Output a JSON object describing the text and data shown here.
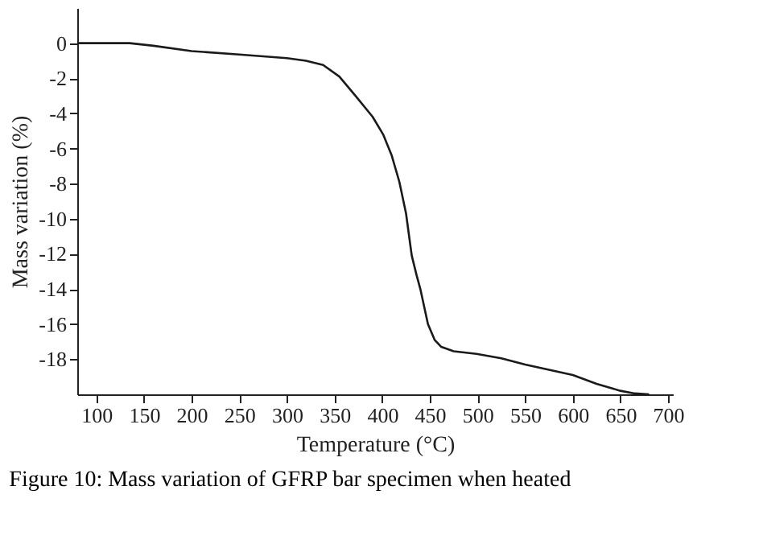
{
  "chart_data": {
    "type": "line",
    "xlabel": "Temperature (°C)",
    "ylabel": "Mass variation (%)",
    "x": [
      80,
      110,
      135,
      160,
      200,
      250,
      300,
      320,
      338,
      355,
      372,
      390,
      401,
      410,
      418,
      425,
      431,
      436,
      440,
      448,
      455,
      462,
      475,
      499,
      525,
      550,
      575,
      600,
      625,
      650,
      665,
      680
    ],
    "series": [
      {
        "color": "#1a1a1a",
        "values": [
          0,
          0,
          0,
          -0.15,
          -0.45,
          -0.65,
          -0.85,
          -1.0,
          -1.24,
          -1.9,
          -3.0,
          -4.2,
          -5.2,
          -6.4,
          -7.9,
          -9.7,
          -12.1,
          -13.2,
          -14.0,
          -16.0,
          -16.9,
          -17.3,
          -17.55,
          -17.7,
          -17.95,
          -18.3,
          -18.6,
          -18.9,
          -19.4,
          -19.8,
          -19.95,
          -20
        ]
      }
    ],
    "xlim": [
      80,
      705
    ],
    "ylim": [
      -20,
      2
    ],
    "xticks": [
      100,
      150,
      200,
      250,
      300,
      350,
      400,
      450,
      500,
      550,
      600,
      650,
      700
    ],
    "yticks": [
      0,
      -2,
      -4,
      -6,
      -8,
      -10,
      -12,
      -14,
      -16,
      -18
    ],
    "grid": false,
    "line_style": "solid",
    "marker": "none",
    "annotations": [
      "Figure 10: Mass variation of GFRP bar specimen when heated"
    ]
  }
}
